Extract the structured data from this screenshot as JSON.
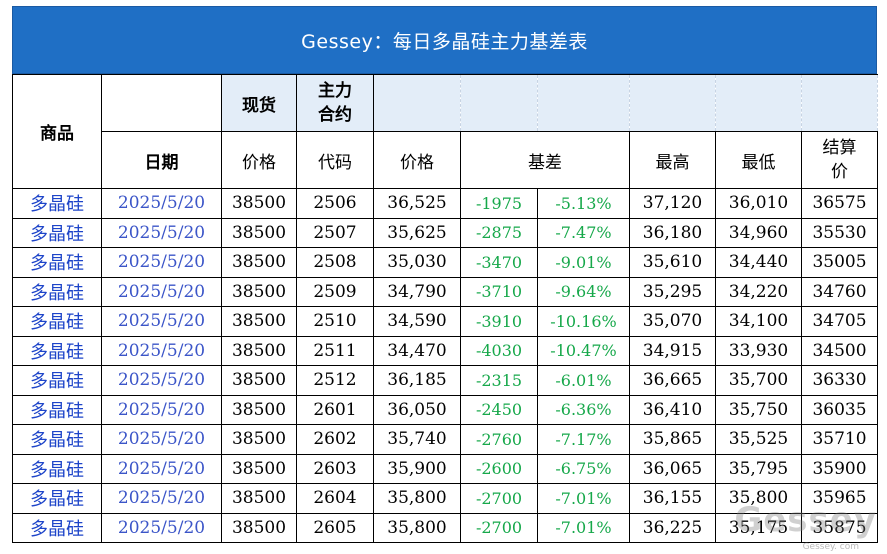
{
  "title": "Gessey：每日多晶硅主力基差表",
  "header": {
    "product": "商品",
    "date": "日期",
    "spot": "现货",
    "main_contract": "主力\n合约",
    "spot_price": "价格",
    "code": "代码",
    "price": "价格",
    "basis": "基差",
    "high": "最高",
    "low": "最低",
    "settle": "结算\n价"
  },
  "rows": [
    {
      "product": "多晶硅",
      "date": "2025/5/20",
      "spot": "38500",
      "code": "2506",
      "price": "36,525",
      "basis": "-1975",
      "basis_pct": "-5.13%",
      "high": "37,120",
      "low": "36,010",
      "settle": "36575"
    },
    {
      "product": "多晶硅",
      "date": "2025/5/20",
      "spot": "38500",
      "code": "2507",
      "price": "35,625",
      "basis": "-2875",
      "basis_pct": "-7.47%",
      "high": "36,180",
      "low": "34,960",
      "settle": "35530"
    },
    {
      "product": "多晶硅",
      "date": "2025/5/20",
      "spot": "38500",
      "code": "2508",
      "price": "35,030",
      "basis": "-3470",
      "basis_pct": "-9.01%",
      "high": "35,610",
      "low": "34,440",
      "settle": "35005"
    },
    {
      "product": "多晶硅",
      "date": "2025/5/20",
      "spot": "38500",
      "code": "2509",
      "price": "34,790",
      "basis": "-3710",
      "basis_pct": "-9.64%",
      "high": "35,295",
      "low": "34,220",
      "settle": "34760"
    },
    {
      "product": "多晶硅",
      "date": "2025/5/20",
      "spot": "38500",
      "code": "2510",
      "price": "34,590",
      "basis": "-3910",
      "basis_pct": "-10.16%",
      "high": "35,070",
      "low": "34,100",
      "settle": "34705"
    },
    {
      "product": "多晶硅",
      "date": "2025/5/20",
      "spot": "38500",
      "code": "2511",
      "price": "34,470",
      "basis": "-4030",
      "basis_pct": "-10.47%",
      "high": "34,915",
      "low": "33,930",
      "settle": "34500"
    },
    {
      "product": "多晶硅",
      "date": "2025/5/20",
      "spot": "38500",
      "code": "2512",
      "price": "36,185",
      "basis": "-2315",
      "basis_pct": "-6.01%",
      "high": "36,665",
      "low": "35,700",
      "settle": "36330"
    },
    {
      "product": "多晶硅",
      "date": "2025/5/20",
      "spot": "38500",
      "code": "2601",
      "price": "36,050",
      "basis": "-2450",
      "basis_pct": "-6.36%",
      "high": "36,410",
      "low": "35,750",
      "settle": "36035"
    },
    {
      "product": "多晶硅",
      "date": "2025/5/20",
      "spot": "38500",
      "code": "2602",
      "price": "35,740",
      "basis": "-2760",
      "basis_pct": "-7.17%",
      "high": "35,865",
      "low": "35,525",
      "settle": "35710"
    },
    {
      "product": "多晶硅",
      "date": "2025/5/20",
      "spot": "38500",
      "code": "2603",
      "price": "35,900",
      "basis": "-2600",
      "basis_pct": "-6.75%",
      "high": "36,065",
      "low": "35,795",
      "settle": "35900"
    },
    {
      "product": "多晶硅",
      "date": "2025/5/20",
      "spot": "38500",
      "code": "2604",
      "price": "35,800",
      "basis": "-2700",
      "basis_pct": "-7.01%",
      "high": "36,155",
      "low": "35,800",
      "settle": "35965"
    },
    {
      "product": "多晶硅",
      "date": "2025/5/20",
      "spot": "38500",
      "code": "2605",
      "price": "35,800",
      "basis": "-2700",
      "basis_pct": "-7.01%",
      "high": "36,225",
      "low": "35,175",
      "settle": "35875"
    }
  ],
  "watermark": {
    "main": "Gessey",
    "subtitle": "Gessey. com"
  },
  "colors": {
    "title_bg": "#1f6fc5",
    "header_bg": "#e3edf8",
    "product_text": "#1d44c9",
    "basis_text": "#16a84a"
  }
}
